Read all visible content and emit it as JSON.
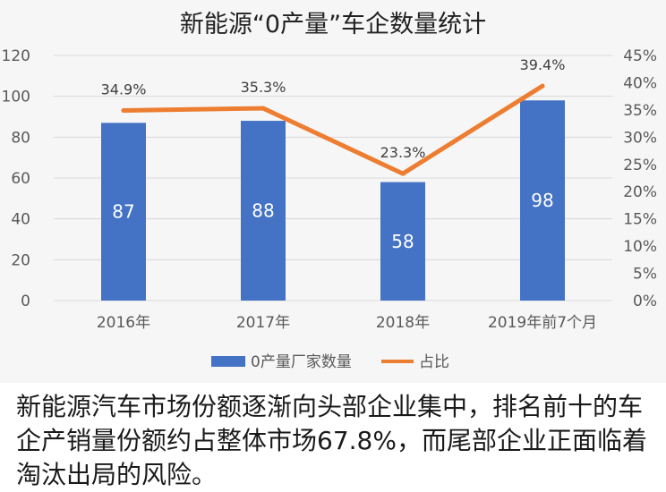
{
  "chart_data": {
    "type": "bar+line",
    "title": "新能源“0产量”车企数量统计",
    "categories": [
      "2016年",
      "2017年",
      "2018年",
      "2019年前7个月"
    ],
    "series": [
      {
        "name": "0产量厂家数量",
        "type": "bar",
        "axis": "left",
        "values": [
          87,
          88,
          58,
          98
        ],
        "labels": [
          "87",
          "88",
          "58",
          "98"
        ]
      },
      {
        "name": "占比",
        "type": "line",
        "axis": "right",
        "values": [
          34.9,
          35.3,
          23.3,
          39.4
        ],
        "labels": [
          "34.9%",
          "35.3%",
          "23.3%",
          "39.4%"
        ]
      }
    ],
    "y_left": {
      "min": 0,
      "max": 120,
      "ticks": [
        "0",
        "20",
        "40",
        "60",
        "80",
        "100",
        "120"
      ]
    },
    "y_right": {
      "min": 0,
      "max": 45,
      "ticks": [
        "0%",
        "5%",
        "10%",
        "15%",
        "20%",
        "25%",
        "30%",
        "35%",
        "40%",
        "45%"
      ]
    },
    "grid": true,
    "legend": "bottom-center"
  },
  "colors": {
    "bar": "#4472c4",
    "line": "#ed7d31",
    "grid": "#d9d9d9"
  },
  "caption": "新能源汽车市场份额逐渐向头部企业集中，排名前十的车企产销量份额约占整体市场67.8%，而尾部企业正面临着淘汰出局的风险。"
}
